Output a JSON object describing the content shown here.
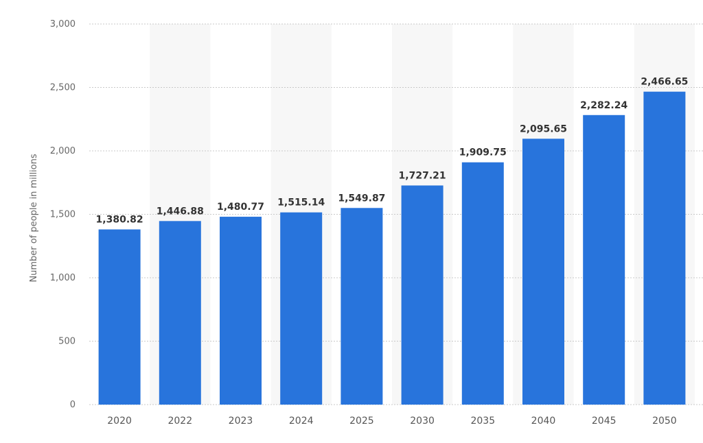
{
  "chart_data": {
    "type": "bar",
    "categories": [
      "2020",
      "2022",
      "2023",
      "2024",
      "2025",
      "2030",
      "2035",
      "2040",
      "2045",
      "2050"
    ],
    "values": [
      1380.82,
      1446.88,
      1480.77,
      1515.14,
      1549.87,
      1727.21,
      1909.75,
      2095.65,
      2282.24,
      2466.65
    ],
    "value_labels": [
      "1,380.82",
      "1,446.88",
      "1,480.77",
      "1,515.14",
      "1,549.87",
      "1,727.21",
      "1,909.75",
      "2,095.65",
      "2,282.24",
      "2,466.65"
    ],
    "title": "",
    "xlabel": "",
    "ylabel": "Number of people in millions",
    "ylim": [
      0,
      3000
    ],
    "yticks": [
      0,
      500,
      1000,
      1500,
      2000,
      2500,
      3000
    ],
    "ytick_labels": [
      "0",
      "500",
      "1,000",
      "1,500",
      "2,000",
      "2,500",
      "3,000"
    ],
    "grid": true,
    "legend": "none",
    "bar_color": "#2874dc",
    "band_color": "#f7f7f7"
  }
}
